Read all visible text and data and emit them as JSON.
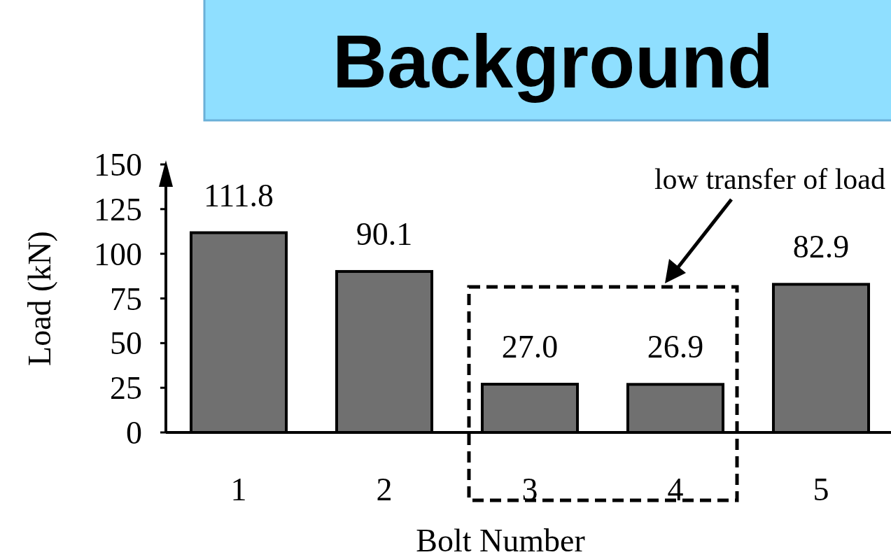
{
  "chart_data": {
    "type": "bar",
    "title": "Background",
    "xlabel": "Bolt Number",
    "ylabel": "Load (kN)",
    "categories": [
      "1",
      "2",
      "3",
      "4",
      "5"
    ],
    "values": [
      111.8,
      90.1,
      27.0,
      26.9,
      82.9
    ],
    "value_labels": [
      "111.8",
      "90.1",
      "27.0",
      "26.9",
      "82.9"
    ],
    "color": "#707070",
    "ylim": [
      0,
      150
    ],
    "yticks": [
      0,
      25,
      50,
      75,
      100,
      125,
      150
    ],
    "annotations": [
      "low transfer of load"
    ]
  }
}
